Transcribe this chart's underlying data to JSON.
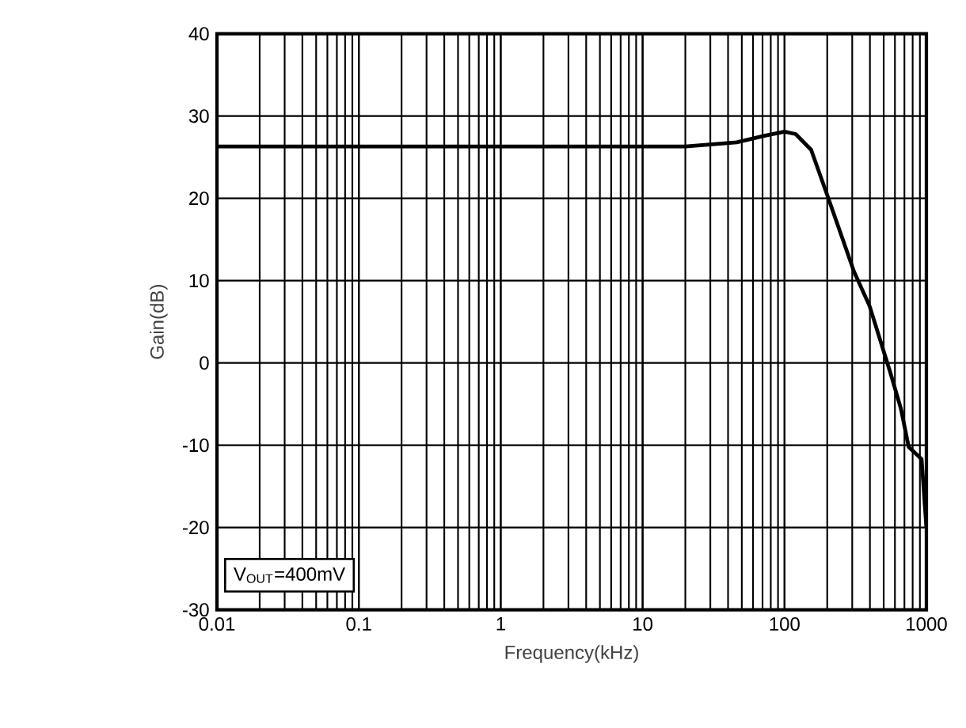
{
  "chart_data": {
    "type": "line",
    "xlabel": "Frequency(kHz)",
    "ylabel": "Gain(dB)",
    "log": "x",
    "color": "#000000",
    "x": [
      0.01,
      0.1,
      1,
      5.5,
      20,
      46,
      72,
      100,
      120,
      154,
      200,
      309,
      398,
      555,
      660,
      750,
      925,
      1000
    ],
    "values": [
      26.3,
      26.3,
      26.3,
      26.3,
      26.3,
      26.8,
      27.6,
      28.1,
      27.8,
      25.9,
      20.4,
      11.1,
      6.9,
      -1.1,
      -5.5,
      -10.2,
      -11.7,
      -20
    ],
    "xlim": [
      0.01,
      1000
    ],
    "xticks": [
      0.01,
      0.1,
      1,
      10,
      100,
      1000
    ],
    "ylim": [
      -30,
      40
    ],
    "yticks": [
      -30,
      -20,
      -10,
      0,
      10,
      20,
      30,
      40
    ],
    "grid": true,
    "marker": "none",
    "line_style": "solid",
    "annotations": [
      "V$_{OUT}$=400mV"
    ]
  }
}
